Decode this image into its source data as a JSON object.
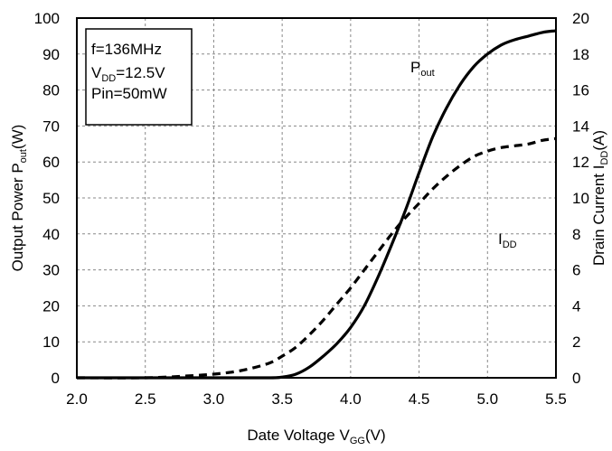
{
  "chart_data": {
    "type": "line",
    "xlabel": {
      "main": "Date Voltage V",
      "sub": "GG",
      "tail": "(V)"
    },
    "ylabel_left": {
      "main": "Output Power P",
      "sub": "out",
      "tail": "(W)"
    },
    "ylabel_right": {
      "main": "Drain Current I",
      "sub": "DD",
      "tail": "(A)"
    },
    "xlim": [
      2.0,
      5.5
    ],
    "ylim_left": [
      0,
      100
    ],
    "ylim_right": [
      0,
      20
    ],
    "x_ticks": [
      "2.0",
      "2.5",
      "3.0",
      "3.5",
      "4.0",
      "4.5",
      "5.0",
      "5.5"
    ],
    "y_left_ticks": [
      "0",
      "10",
      "20",
      "30",
      "40",
      "50",
      "60",
      "70",
      "80",
      "90",
      "100"
    ],
    "y_right_ticks": [
      "0",
      "2",
      "4",
      "6",
      "8",
      "10",
      "12",
      "14",
      "16",
      "18",
      "20"
    ],
    "grid": true,
    "conditions": [
      {
        "main": "f=136MHz",
        "sub": "",
        "tail": ""
      },
      {
        "main": "V",
        "sub": "DD",
        "tail": "=12.5V"
      },
      {
        "main": "Pin=50mW",
        "sub": "",
        "tail": ""
      }
    ],
    "series": [
      {
        "name": {
          "main": "P",
          "sub": "out"
        },
        "axis": "left",
        "style": "solid",
        "x": [
          2.0,
          3.0,
          3.4,
          3.5,
          3.6,
          3.7,
          3.8,
          3.9,
          4.0,
          4.1,
          4.2,
          4.3,
          4.4,
          4.5,
          4.6,
          4.7,
          4.8,
          4.9,
          5.0,
          5.1,
          5.2,
          5.3,
          5.4,
          5.5
        ],
        "values": [
          0,
          0,
          0,
          0.2,
          1,
          3,
          6,
          9.5,
          14,
          20,
          28,
          37,
          46.5,
          57,
          67,
          75,
          81.5,
          86.5,
          90,
          92.5,
          94,
          95,
          96,
          96.5
        ]
      },
      {
        "name": {
          "main": "I",
          "sub": "DD"
        },
        "axis": "right",
        "style": "dashed",
        "x": [
          2.0,
          2.5,
          2.8,
          3.0,
          3.2,
          3.4,
          3.5,
          3.6,
          3.7,
          3.8,
          3.9,
          4.0,
          4.1,
          4.2,
          4.3,
          4.4,
          4.5,
          4.6,
          4.7,
          4.8,
          4.9,
          5.0,
          5.1,
          5.2,
          5.3,
          5.4,
          5.5
        ],
        "values": [
          0,
          0,
          0.1,
          0.2,
          0.4,
          0.8,
          1.2,
          1.7,
          2.4,
          3.2,
          4.1,
          5.0,
          6.0,
          7.0,
          8.0,
          8.9,
          9.7,
          10.5,
          11.2,
          11.8,
          12.3,
          12.6,
          12.8,
          12.9,
          13.0,
          13.2,
          13.3
        ]
      }
    ]
  }
}
